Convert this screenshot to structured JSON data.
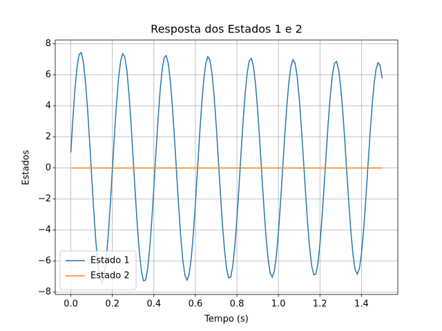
{
  "chart_data": {
    "type": "line",
    "title": "Resposta dos Estados 1 e 2",
    "xlabel": "Tempo (s)",
    "ylabel": "Estados",
    "x": [
      0,
      0.01,
      0.02,
      0.03,
      0.04,
      0.05,
      0.06,
      0.07,
      0.08,
      0.09,
      0.1,
      0.11,
      0.12,
      0.13,
      0.14,
      0.15,
      0.16,
      0.17,
      0.18,
      0.19,
      0.2,
      0.21,
      0.22,
      0.23,
      0.24,
      0.25,
      0.26,
      0.27,
      0.28,
      0.29,
      0.3,
      0.31,
      0.32,
      0.33,
      0.34,
      0.35,
      0.36,
      0.37,
      0.38,
      0.39,
      0.4,
      0.41,
      0.42,
      0.43,
      0.44,
      0.45,
      0.46,
      0.47,
      0.48,
      0.49,
      0.5,
      0.51,
      0.52,
      0.53,
      0.54,
      0.55,
      0.56,
      0.57,
      0.58,
      0.59,
      0.6,
      0.61,
      0.62,
      0.63,
      0.64,
      0.65,
      0.66,
      0.67,
      0.68,
      0.69,
      0.7,
      0.71,
      0.72,
      0.73,
      0.74,
      0.75,
      0.76,
      0.77,
      0.78,
      0.79,
      0.8,
      0.81,
      0.82,
      0.83,
      0.84,
      0.85,
      0.86,
      0.87,
      0.88,
      0.89,
      0.9,
      0.91,
      0.92,
      0.93,
      0.94,
      0.95,
      0.96,
      0.97,
      0.98,
      0.99,
      1.0,
      1.01,
      1.02,
      1.03,
      1.04,
      1.05,
      1.06,
      1.07,
      1.08,
      1.09,
      1.1,
      1.11,
      1.12,
      1.13,
      1.14,
      1.15,
      1.16,
      1.17,
      1.18,
      1.19,
      1.2,
      1.21,
      1.22,
      1.23,
      1.24,
      1.25,
      1.26,
      1.27,
      1.28,
      1.29,
      1.3,
      1.31,
      1.32,
      1.33,
      1.34,
      1.35,
      1.36,
      1.37,
      1.38,
      1.39,
      1.4,
      1.41,
      1.42,
      1.43,
      1.44,
      1.45,
      1.46,
      1.47,
      1.48,
      1.49,
      1.5
    ],
    "series": [
      {
        "name": "Estado 1",
        "color": "#1f77b4",
        "values": [
          1.0,
          3.2,
          5.09,
          6.51,
          7.32,
          7.44,
          6.87,
          5.67,
          3.94,
          1.84,
          -0.43,
          -2.65,
          -4.62,
          -6.16,
          -7.13,
          -7.43,
          -7.03,
          -5.98,
          -4.38,
          -2.37,
          -0.14,
          2.1,
          4.14,
          5.79,
          6.9,
          7.37,
          7.15,
          6.26,
          4.79,
          2.88,
          0.7,
          -1.54,
          -3.63,
          -5.39,
          -6.64,
          -7.27,
          -7.22,
          -6.5,
          -5.18,
          -3.37,
          -1.25,
          0.98,
          3.11,
          4.96,
          6.34,
          7.13,
          7.25,
          6.7,
          5.52,
          3.83,
          1.79,
          -0.42,
          -2.58,
          -4.5,
          -6.0,
          -6.94,
          -7.23,
          -6.85,
          -5.83,
          -4.27,
          -2.31,
          -0.14,
          2.04,
          4.03,
          5.64,
          6.72,
          7.18,
          6.96,
          6.1,
          4.67,
          2.81,
          0.69,
          -1.5,
          -3.54,
          -5.24,
          -6.46,
          -7.08,
          -7.03,
          -6.33,
          -5.04,
          -3.28,
          -1.22,
          0.95,
          3.03,
          4.83,
          6.17,
          6.94,
          7.06,
          6.52,
          5.37,
          3.73,
          1.74,
          -0.41,
          -2.51,
          -4.38,
          -5.84,
          -6.76,
          -7.04,
          -6.67,
          -5.67,
          -4.15,
          -2.25,
          -0.13,
          1.99,
          3.92,
          5.49,
          6.54,
          6.98,
          6.77,
          5.93,
          4.54,
          2.73,
          0.67,
          -1.46,
          -3.44,
          -5.1,
          -6.29,
          -6.88,
          -6.84,
          -6.16,
          -4.9,
          -3.19,
          -1.19,
          0.92,
          2.95,
          4.69,
          6.0,
          6.75,
          6.86,
          6.34,
          5.23,
          3.63,
          1.69,
          -0.39,
          -2.44,
          -4.26,
          -5.68,
          -6.57,
          -6.84,
          -6.48,
          -5.51,
          -4.04,
          -2.18,
          -0.13,
          1.93,
          3.81,
          5.33,
          6.36,
          6.79,
          6.58,
          5.77
        ]
      },
      {
        "name": "Estado 2",
        "color": "#ff7f0e",
        "values": [
          0,
          0,
          0,
          0,
          0,
          0,
          0,
          0,
          0,
          0,
          0,
          0,
          0,
          0,
          0,
          0,
          0,
          0,
          0,
          0,
          0,
          0,
          0,
          0,
          0,
          0,
          0,
          0,
          0,
          0,
          0,
          0,
          0,
          0,
          0,
          0,
          0,
          0,
          0,
          0,
          0,
          0,
          0,
          0,
          0,
          0,
          0,
          0,
          0,
          0,
          0,
          0,
          0,
          0,
          0,
          0,
          0,
          0,
          0,
          0,
          0,
          0,
          0,
          0,
          0,
          0,
          0,
          0,
          0,
          0,
          0,
          0,
          0,
          0,
          0,
          0,
          0,
          0,
          0,
          0,
          0,
          0,
          0,
          0,
          0,
          0,
          0,
          0,
          0,
          0,
          0,
          0,
          0,
          0,
          0,
          0,
          0,
          0,
          0,
          0,
          0,
          0,
          0,
          0,
          0,
          0,
          0,
          0,
          0,
          0,
          0,
          0,
          0,
          0,
          0,
          0,
          0,
          0,
          0,
          0,
          0,
          0,
          0,
          0,
          0,
          0,
          0,
          0,
          0,
          0,
          0,
          0,
          0,
          0,
          0,
          0,
          0,
          0,
          0,
          0,
          0,
          0,
          0,
          0,
          0,
          0,
          0,
          0,
          0,
          0,
          0
        ]
      }
    ],
    "xlim": [
      -0.075,
      1.575
    ],
    "xticks": [
      {
        "value": 0,
        "label": "0.0"
      },
      0.2,
      0.4,
      0.6,
      0.8,
      {
        "value": 1,
        "label": "1.0"
      },
      1.2,
      1.4
    ],
    "ylim": [
      -8.15,
      8.25
    ],
    "yticks": [
      {
        "value": -8,
        "label": "−8"
      },
      {
        "value": -6,
        "label": "−6"
      },
      {
        "value": -4,
        "label": "−4"
      },
      {
        "value": -2,
        "label": "−2"
      },
      0,
      2,
      4,
      6,
      8
    ],
    "grid": true,
    "legend": "lower left"
  }
}
